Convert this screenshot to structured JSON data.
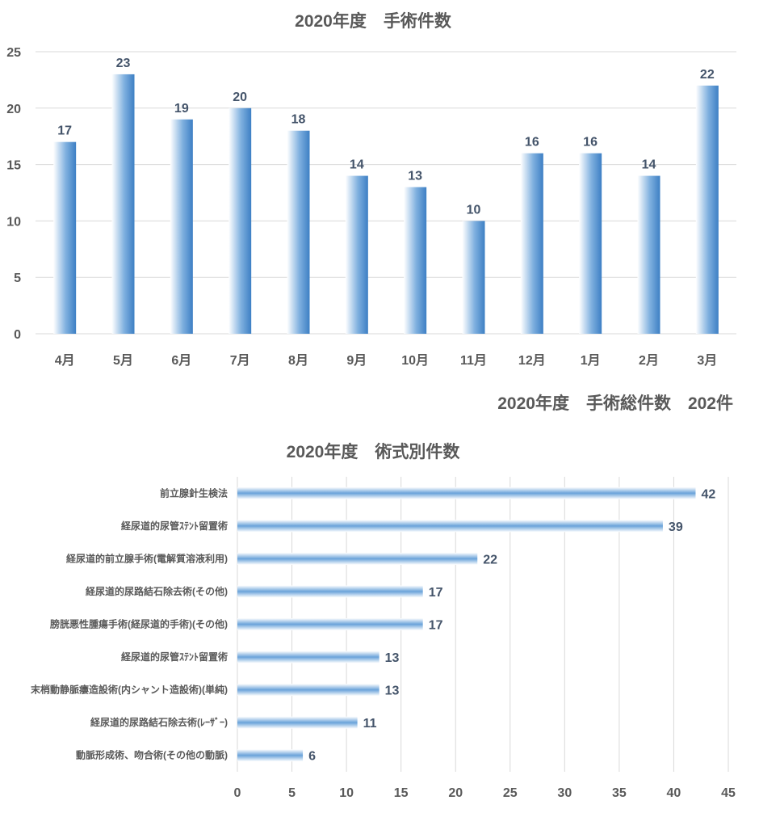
{
  "chart_data": [
    {
      "type": "bar",
      "orientation": "vertical",
      "title": "2020年度　手術件数",
      "categories": [
        "4月",
        "5月",
        "6月",
        "7月",
        "8月",
        "9月",
        "10月",
        "11月",
        "12月",
        "1月",
        "2月",
        "3月"
      ],
      "values": [
        17,
        23,
        19,
        20,
        18,
        14,
        13,
        10,
        16,
        16,
        14,
        22
      ],
      "yticks": [
        "0",
        "5",
        "10",
        "15",
        "20",
        "25"
      ],
      "ylim": [
        0,
        25
      ],
      "grid": true,
      "data_labels": true,
      "annotation": "2020年度　手術総件数　202件",
      "bar_color": "#5b9bd5"
    },
    {
      "type": "bar",
      "orientation": "horizontal",
      "title": "2020年度　術式別件数",
      "categories": [
        "前立腺針生検法",
        "経尿道的尿管ｽﾃﾝﾄ留置術",
        "経尿道的前立腺手術(電解質溶液利用)",
        "経尿道的尿路結石除去術(その他)",
        "膀胱悪性腫瘍手術(経尿道的手術)(その他)",
        "経尿道的尿管ｽﾃﾝﾄ留置術",
        "末梢動静脈瘻造設術(内シャント造設術)(単純)",
        "経尿道的尿路結石除去術(ﾚｰｻﾞｰ)",
        "動脈形成術、吻合術(その他の動脈)"
      ],
      "values": [
        42,
        39,
        22,
        17,
        17,
        13,
        13,
        11,
        6
      ],
      "xticks": [
        "0",
        "5",
        "10",
        "15",
        "20",
        "25",
        "30",
        "35",
        "40",
        "45"
      ],
      "xlim": [
        0,
        45
      ],
      "grid": true,
      "data_labels": true,
      "bar_color": "#5b9bd5"
    }
  ]
}
